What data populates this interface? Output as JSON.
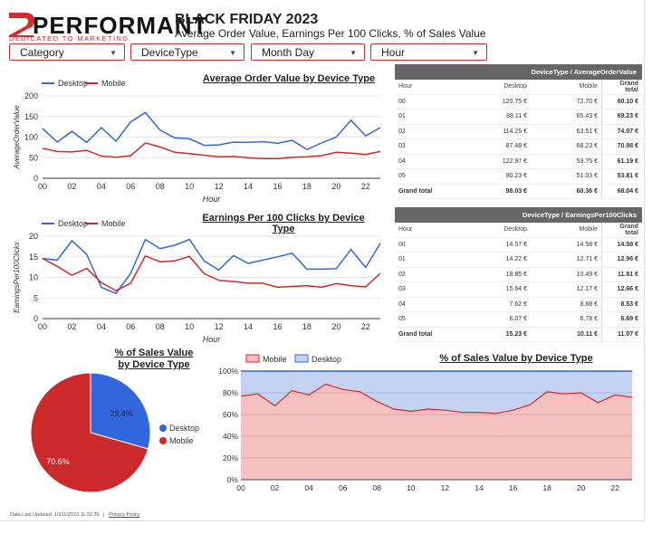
{
  "brand": {
    "name": "PERFORMANT",
    "tagline": "DEDICATED TO MARKETING SUPERHEROES",
    "accent": "#d62b2b"
  },
  "header": {
    "title": "BLACK FRIDAY 2023",
    "subtitle": "Average Order Value, Earnings Per 100 Clicks, % of Sales Value"
  },
  "filters": [
    {
      "label": "Category"
    },
    {
      "label": "DeviceType"
    },
    {
      "label": "Month Day"
    },
    {
      "label": "Hour"
    }
  ],
  "colors": {
    "desktop": "#3366dd",
    "mobile": "#cc2a2a",
    "desktop_fill": "#c5d3f3",
    "mobile_fill": "#f4c0c0",
    "table_header": "#666666"
  },
  "charts": {
    "aov": {
      "title": "Average Order Value by Device Type",
      "legend": [
        "Desktop",
        "Mobile"
      ],
      "ylabel": "AverageOrderValue",
      "xlabel": "Hour",
      "yticks": [
        "0",
        "50",
        "100",
        "150",
        "200"
      ],
      "xticks": [
        "00",
        "02",
        "04",
        "06",
        "08",
        "10",
        "12",
        "14",
        "16",
        "18",
        "20",
        "22"
      ]
    },
    "epc": {
      "title": "Earnings Per 100 Clicks by Device Type",
      "legend": [
        "Desktop",
        "Mobile"
      ],
      "ylabel": "EarningsPer100Clicks",
      "xlabel": "Hour",
      "yticks": [
        "0",
        "5",
        "10",
        "15",
        "20"
      ],
      "xticks": [
        "00",
        "02",
        "04",
        "06",
        "08",
        "10",
        "12",
        "14",
        "16",
        "18",
        "20",
        "22"
      ]
    },
    "pie": {
      "title_line1": "% of Sales Value",
      "title_line2": "by Device Type",
      "legend": [
        "Desktop",
        "Mobile"
      ],
      "desktop_label": "29.4%",
      "mobile_label": "70.6%"
    },
    "area": {
      "title": "% of Sales Value by Device Type",
      "legend": [
        "Mobile",
        "Desktop"
      ],
      "yticks": [
        "0%",
        "20%",
        "40%",
        "60%",
        "80%",
        "100%"
      ],
      "xticks": [
        "00",
        "02",
        "04",
        "06",
        "08",
        "10",
        "12",
        "14",
        "16",
        "18",
        "20",
        "22"
      ]
    }
  },
  "chart_data": [
    {
      "type": "line",
      "title": "Average Order Value by Device Type",
      "xlabel": "Hour",
      "ylabel": "AverageOrderValue",
      "ylim": [
        0,
        200
      ],
      "x": [
        "00",
        "01",
        "02",
        "03",
        "04",
        "05",
        "06",
        "07",
        "08",
        "09",
        "10",
        "11",
        "12",
        "13",
        "14",
        "15",
        "16",
        "17",
        "18",
        "19",
        "20",
        "21",
        "22",
        "23"
      ],
      "series": [
        {
          "name": "Desktop",
          "values": [
            121,
            88,
            114,
            87,
            123,
            90,
            137,
            160,
            117,
            98,
            96,
            80,
            81,
            88,
            87,
            89,
            85,
            92,
            70,
            86,
            100,
            141,
            103,
            123
          ]
        },
        {
          "name": "Mobile",
          "values": [
            73,
            65,
            64,
            68,
            54,
            51,
            55,
            86,
            76,
            63,
            60,
            56,
            52,
            53,
            50,
            48,
            48,
            51,
            52,
            55,
            63,
            61,
            58,
            65
          ]
        }
      ]
    },
    {
      "type": "line",
      "title": "Earnings Per 100 Clicks by Device Type",
      "xlabel": "Hour",
      "ylabel": "EarningsPer100Clicks",
      "ylim": [
        0,
        20
      ],
      "x": [
        "00",
        "01",
        "02",
        "03",
        "04",
        "05",
        "06",
        "07",
        "08",
        "09",
        "10",
        "11",
        "12",
        "13",
        "14",
        "15",
        "16",
        "17",
        "18",
        "19",
        "20",
        "21",
        "22",
        "23"
      ],
      "series": [
        {
          "name": "Desktop",
          "values": [
            14.6,
            14.2,
            18.9,
            15.6,
            7.6,
            6.1,
            11.0,
            19.2,
            17.0,
            17.8,
            19.2,
            14.0,
            11.8,
            15.3,
            13.4,
            14.2,
            15.0,
            15.9,
            12.0,
            12.0,
            12.1,
            16.8,
            12.4,
            18.3
          ]
        },
        {
          "name": "Mobile",
          "values": [
            14.6,
            12.7,
            10.5,
            12.2,
            8.7,
            6.8,
            8.6,
            15.2,
            13.8,
            14.0,
            15.1,
            10.9,
            9.3,
            9.0,
            8.6,
            8.6,
            7.6,
            7.8,
            8.0,
            7.6,
            8.5,
            8.0,
            7.7,
            11.0
          ]
        }
      ]
    },
    {
      "type": "pie",
      "title": "% of Sales Value by Device Type",
      "categories": [
        "Desktop",
        "Mobile"
      ],
      "values": [
        29.4,
        70.6
      ]
    },
    {
      "type": "area",
      "title": "% of Sales Value by Device Type",
      "ylim": [
        0,
        100
      ],
      "stacked": true,
      "x": [
        "00",
        "01",
        "02",
        "03",
        "04",
        "05",
        "06",
        "07",
        "08",
        "09",
        "10",
        "11",
        "12",
        "13",
        "14",
        "15",
        "16",
        "17",
        "18",
        "19",
        "20",
        "21",
        "22",
        "23"
      ],
      "series": [
        {
          "name": "Mobile",
          "values": [
            77,
            79,
            68,
            82,
            78,
            88,
            83,
            81,
            72,
            65,
            63,
            65,
            64,
            62,
            62,
            61,
            64,
            69,
            81,
            79,
            80,
            71,
            78,
            76
          ]
        },
        {
          "name": "Desktop",
          "values": [
            23,
            21,
            32,
            18,
            22,
            12,
            17,
            19,
            28,
            35,
            37,
            35,
            36,
            38,
            38,
            39,
            36,
            31,
            19,
            21,
            20,
            29,
            22,
            24
          ]
        }
      ]
    }
  ],
  "tables": [
    {
      "title": "DeviceType / AverageOrderValue",
      "columns": [
        "Hour",
        "Desktop",
        "Mobile",
        "Grand total"
      ],
      "rows": [
        [
          "00",
          "120.75 €",
          "72.70 €",
          "80.10 €"
        ],
        [
          "01",
          "88.11 €",
          "65.43 €",
          "69.23 €"
        ],
        [
          "02",
          "114.25 €",
          "63.51 €",
          "74.07 €"
        ],
        [
          "03",
          "87.48 €",
          "68.23 €",
          "70.98 €"
        ],
        [
          "04",
          "122.97 €",
          "53.75 €",
          "61.19 €"
        ],
        [
          "05",
          "90.23 €",
          "51.03 €",
          "53.81 €"
        ]
      ],
      "total": [
        "Grand total",
        "98.03 €",
        "60.36 €",
        "68.04 €"
      ]
    },
    {
      "title": "DeviceType / EarningsPer100Clicks",
      "columns": [
        "Hour",
        "Desktop",
        "Mobile",
        "Grand total"
      ],
      "rows": [
        [
          "00",
          "14.57 €",
          "14.58 €",
          "14.58 €"
        ],
        [
          "01",
          "14.22 €",
          "12.71 €",
          "12.96 €"
        ],
        [
          "02",
          "18.85 €",
          "10.49 €",
          "11.81 €"
        ],
        [
          "03",
          "15.64 €",
          "12.17 €",
          "12.66 €"
        ],
        [
          "04",
          "7.62 €",
          "8.68 €",
          "8.53 €"
        ],
        [
          "05",
          "6.07 €",
          "6.78 €",
          "6.69 €"
        ]
      ],
      "total": [
        "Grand total",
        "15.23 €",
        "10.11 €",
        "11.07 €"
      ]
    }
  ],
  "footer": {
    "updated": "Data Last Updated: 10/11/2023 11:32:39",
    "privacy": "Privacy Policy"
  }
}
